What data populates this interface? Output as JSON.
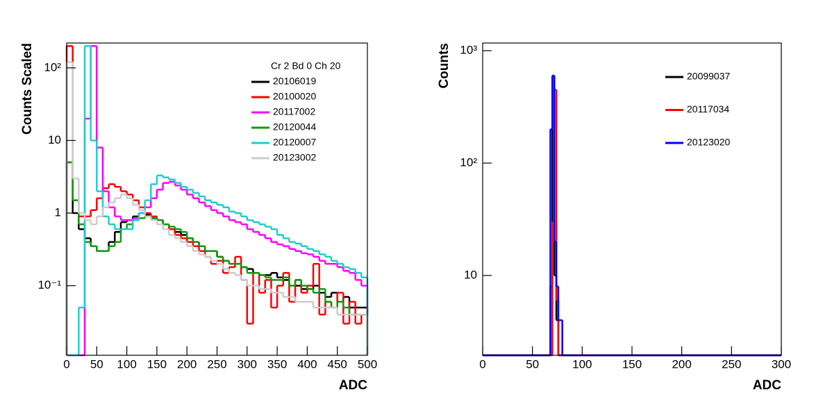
{
  "chart_data": [
    {
      "type": "histogram",
      "ylabel": "Counts Scaled",
      "xlabel": "ADC",
      "legend_title": "Cr 2 Bd 0 Ch 20",
      "log_y": true,
      "xlim": [
        0,
        500
      ],
      "ylim": [
        0.011,
        220
      ],
      "xticks": [
        0,
        50,
        100,
        150,
        200,
        250,
        300,
        350,
        400,
        450,
        500
      ],
      "yticks": [
        {
          "value": 0.1,
          "label": "10⁻¹"
        },
        1,
        10,
        {
          "value": 100,
          "label": "10²"
        }
      ],
      "bins": [
        0,
        10,
        20,
        30,
        40,
        50,
        60,
        70,
        80,
        90,
        100,
        110,
        120,
        130,
        140,
        150,
        160,
        170,
        180,
        190,
        200,
        210,
        220,
        230,
        240,
        250,
        260,
        270,
        280,
        290,
        300,
        310,
        320,
        330,
        340,
        350,
        360,
        370,
        380,
        390,
        400,
        410,
        420,
        430,
        440,
        450,
        460,
        470,
        480,
        490,
        500
      ],
      "series": [
        {
          "name": "20106019",
          "color": "#000000",
          "values": [
            5,
            1.0,
            0.6,
            0.45,
            0.35,
            0.3,
            0.3,
            0.4,
            0.55,
            0.75,
            0.8,
            0.9,
            1.0,
            0.95,
            0.85,
            0.8,
            0.7,
            0.6,
            0.55,
            0.5,
            0.45,
            0.4,
            0.35,
            0.3,
            0.3,
            0.25,
            0.22,
            0.2,
            0.2,
            0.18,
            0.17,
            0.15,
            0.14,
            0.14,
            0.15,
            0.13,
            0.12,
            0.1,
            0.1,
            0.09,
            0.09,
            0.1,
            0.08,
            0.07,
            0.08,
            0.06,
            0.07,
            0.05,
            0.05,
            0.05
          ]
        },
        {
          "name": "20100020",
          "color": "#ff0000",
          "values": [
            200,
            1.5,
            0.9,
            0.9,
            1.1,
            1.6,
            2.2,
            2.5,
            2.3,
            2.0,
            1.8,
            1.5,
            1.2,
            1.0,
            0.9,
            0.8,
            0.7,
            0.6,
            0.5,
            0.45,
            0.4,
            0.35,
            0.3,
            0.25,
            0.2,
            0.22,
            0.15,
            0.18,
            0.25,
            0.12,
            0.03,
            0.15,
            0.08,
            0.12,
            0.05,
            0.1,
            0.15,
            0.06,
            0.12,
            0.08,
            0.1,
            0.2,
            0.04,
            0.06,
            0.05,
            0.08,
            0.03,
            0.06,
            0.03,
            0.04
          ]
        },
        {
          "name": "20117002",
          "color": "#ff00ff",
          "values": [
            0,
            0,
            0,
            20,
            200,
            8,
            2,
            1.2,
            0.9,
            0.8,
            0.8,
            0.85,
            1.0,
            1.2,
            1.6,
            2.1,
            2.6,
            2.7,
            2.4,
            2.1,
            1.8,
            1.6,
            1.4,
            1.25,
            1.1,
            1.0,
            0.9,
            0.8,
            0.75,
            0.7,
            0.6,
            0.55,
            0.5,
            0.45,
            0.4,
            0.37,
            0.35,
            0.32,
            0.3,
            0.28,
            0.27,
            0.25,
            0.22,
            0.2,
            0.2,
            0.18,
            0.16,
            0.15,
            0.12,
            0.1
          ]
        },
        {
          "name": "20120044",
          "color": "#119911",
          "values": [
            5,
            1.5,
            0.7,
            0.4,
            0.35,
            0.3,
            0.3,
            0.35,
            0.4,
            0.6,
            0.7,
            0.8,
            0.85,
            0.9,
            0.85,
            0.8,
            0.7,
            0.65,
            0.6,
            0.55,
            0.45,
            0.4,
            0.35,
            0.3,
            0.3,
            0.25,
            0.22,
            0.2,
            0.2,
            0.18,
            0.15,
            0.15,
            0.14,
            0.13,
            0.12,
            0.12,
            0.13,
            0.1,
            0.12,
            0.1,
            0.09,
            0.08,
            0.09,
            0.06,
            0.05,
            0.06,
            0.05,
            0.04,
            0.04,
            0.04
          ]
        },
        {
          "name": "20120007",
          "color": "#22cccc",
          "values": [
            0,
            0,
            0.05,
            200,
            10,
            2,
            0.9,
            0.7,
            0.6,
            0.6,
            0.6,
            0.8,
            1.0,
            1.5,
            2.5,
            3.3,
            3.1,
            2.9,
            2.6,
            2.3,
            2.1,
            1.9,
            1.7,
            1.5,
            1.4,
            1.3,
            1.2,
            1.05,
            1.0,
            0.9,
            0.8,
            0.75,
            0.7,
            0.65,
            0.6,
            0.5,
            0.45,
            0.4,
            0.38,
            0.35,
            0.32,
            0.3,
            0.27,
            0.25,
            0.22,
            0.2,
            0.18,
            0.17,
            0.15,
            0.13
          ]
        },
        {
          "name": "20123002",
          "color": "#cccccc",
          "values": [
            120,
            3,
            1.0,
            0.8,
            0.7,
            0.9,
            1.2,
            1.4,
            1.6,
            1.8,
            1.6,
            1.3,
            1.1,
            0.9,
            0.8,
            0.7,
            0.6,
            0.5,
            0.45,
            0.4,
            0.35,
            0.3,
            0.27,
            0.25,
            0.22,
            0.2,
            0.17,
            0.15,
            0.14,
            0.12,
            0.1,
            0.1,
            0.09,
            0.09,
            0.08,
            0.08,
            0.07,
            0.07,
            0.06,
            0.06,
            0.06,
            0.05,
            0.05,
            0.05,
            0.05,
            0.04,
            0.04,
            0.04,
            0.04,
            0.04
          ]
        }
      ]
    },
    {
      "type": "histogram",
      "ylabel": "Counts",
      "xlabel": "ADC",
      "log_y": true,
      "xlim": [
        0,
        300
      ],
      "ylim": [
        1.95,
        1170
      ],
      "xticks": [
        0,
        50,
        100,
        150,
        200,
        250,
        300
      ],
      "yticks": [
        10,
        {
          "value": 100,
          "label": "10²"
        },
        {
          "value": 1000,
          "label": "10³"
        }
      ],
      "bins": [
        0,
        68,
        70,
        72,
        74,
        76,
        78,
        80,
        300
      ],
      "series": [
        {
          "name": "20099037",
          "color": "#000000",
          "values": [
            0,
            8,
            600,
            10,
            4,
            0,
            0,
            0
          ]
        },
        {
          "name": "20117034",
          "color": "#ff0000",
          "values": [
            0,
            0,
            30,
            450,
            6,
            0,
            0,
            0
          ]
        },
        {
          "name": "20123020",
          "color": "#0000ff",
          "values": [
            0,
            200,
            600,
            20,
            8,
            4,
            4,
            0
          ]
        }
      ]
    }
  ]
}
